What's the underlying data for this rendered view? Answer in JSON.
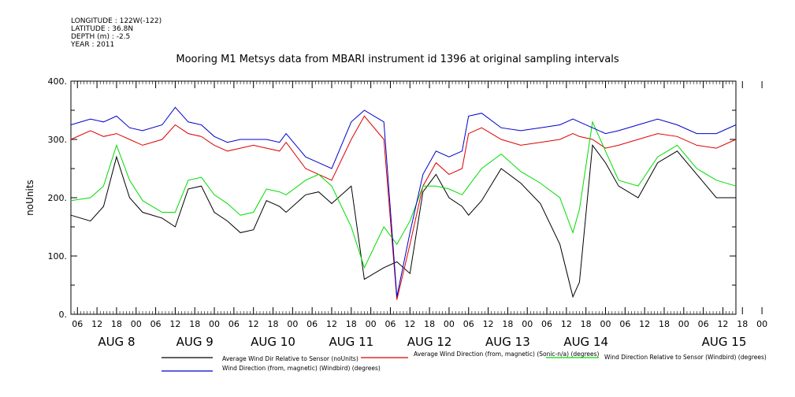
{
  "meta_lines": [
    "LONGITUDE : 122W(-122)",
    "LATITUDE : 36.8N",
    "DEPTH (m) : -2.5",
    "YEAR : 2011"
  ],
  "chart_data": {
    "type": "line",
    "title": "Mooring M1 Metsys data from MBARI instrument id 1396 at original sampling intervals",
    "ylabel": "noUnits",
    "xlabel": "",
    "ylim": [
      0,
      400
    ],
    "yticks": [
      0,
      100,
      200,
      300,
      400
    ],
    "yticklabels": [
      "0.",
      "100.",
      "200.",
      "300.",
      "400."
    ],
    "xlim_hours": [
      0,
      204
    ],
    "hour_ticks": [
      "06",
      "12",
      "18",
      "00",
      "06",
      "12",
      "18",
      "00",
      "06",
      "12",
      "18",
      "00",
      "06",
      "12",
      "18",
      "00",
      "06",
      "12",
      "18",
      "00",
      "06",
      "12",
      "18",
      "00",
      "06",
      "12",
      "18",
      "00",
      "06",
      "12",
      "18",
      "00",
      "06",
      "12",
      "18",
      "00"
    ],
    "day_labels": [
      "AUG  8",
      "AUG  9",
      "AUG 10",
      "AUG 11",
      "AUG 12",
      "AUG 13",
      "AUG 14",
      "AUG 15"
    ],
    "grid": false,
    "legend_position": "bottom",
    "series": [
      {
        "name": "Average Wind Dir Relative to Sensor (noUnits)",
        "color": "#000000",
        "x": [
          0,
          6,
          10,
          14,
          18,
          22,
          28,
          32,
          36,
          40,
          44,
          48,
          52,
          56,
          60,
          64,
          66,
          72,
          76,
          80,
          86,
          90,
          96,
          100,
          104,
          108,
          112,
          116,
          120,
          122,
          126,
          132,
          138,
          144,
          150,
          154,
          156,
          160,
          164,
          168,
          174,
          180,
          186,
          192,
          198,
          204
        ],
        "y": [
          170,
          160,
          185,
          270,
          200,
          175,
          165,
          150,
          215,
          220,
          175,
          160,
          140,
          145,
          195,
          185,
          175,
          205,
          210,
          190,
          220,
          60,
          80,
          90,
          70,
          210,
          240,
          200,
          185,
          170,
          195,
          250,
          225,
          190,
          120,
          30,
          55,
          290,
          260,
          220,
          200,
          260,
          280,
          240,
          200,
          200
        ]
      },
      {
        "name": "Average Wind Direction (from, magnetic) (Sonic-n/a) (degrees)",
        "color": "#dd0000",
        "x": [
          0,
          6,
          10,
          14,
          18,
          22,
          28,
          32,
          36,
          40,
          44,
          48,
          52,
          56,
          60,
          64,
          66,
          72,
          76,
          80,
          86,
          90,
          96,
          100,
          104,
          108,
          112,
          116,
          120,
          122,
          126,
          132,
          138,
          144,
          150,
          154,
          156,
          160,
          164,
          168,
          174,
          180,
          186,
          192,
          198,
          204
        ],
        "y": [
          300,
          315,
          305,
          310,
          300,
          290,
          300,
          325,
          310,
          305,
          290,
          280,
          285,
          290,
          285,
          280,
          295,
          250,
          240,
          230,
          300,
          340,
          300,
          25,
          120,
          220,
          260,
          240,
          250,
          310,
          320,
          300,
          290,
          295,
          300,
          310,
          305,
          300,
          285,
          290,
          300,
          310,
          305,
          290,
          285,
          300
        ]
      },
      {
        "name": "Wind Direction Relative to Sensor (Windbird) (degrees)",
        "color": "#00dd00",
        "x": [
          0,
          6,
          10,
          14,
          18,
          22,
          28,
          32,
          36,
          40,
          44,
          48,
          52,
          56,
          60,
          64,
          66,
          72,
          76,
          80,
          86,
          90,
          96,
          100,
          104,
          108,
          112,
          116,
          120,
          122,
          126,
          132,
          138,
          144,
          150,
          154,
          156,
          160,
          164,
          168,
          174,
          180,
          186,
          192,
          198,
          204
        ],
        "y": [
          195,
          200,
          220,
          290,
          230,
          195,
          175,
          175,
          230,
          235,
          205,
          190,
          170,
          175,
          215,
          210,
          205,
          230,
          240,
          220,
          150,
          80,
          150,
          120,
          160,
          220,
          220,
          215,
          205,
          220,
          250,
          275,
          245,
          225,
          200,
          140,
          180,
          330,
          280,
          230,
          220,
          270,
          290,
          250,
          230,
          220
        ]
      },
      {
        "name": "Wind Direction (from, magnetic) (Windbird) (degrees)",
        "color": "#0000cc",
        "x": [
          0,
          6,
          10,
          14,
          18,
          22,
          28,
          32,
          36,
          40,
          44,
          48,
          52,
          56,
          60,
          64,
          66,
          72,
          76,
          80,
          86,
          90,
          96,
          100,
          104,
          108,
          112,
          116,
          120,
          122,
          126,
          132,
          138,
          144,
          150,
          154,
          156,
          160,
          164,
          168,
          174,
          180,
          186,
          192,
          198,
          204
        ],
        "y": [
          325,
          335,
          330,
          340,
          320,
          315,
          325,
          355,
          330,
          325,
          305,
          295,
          300,
          300,
          300,
          295,
          310,
          270,
          260,
          250,
          330,
          350,
          330,
          30,
          140,
          240,
          280,
          270,
          280,
          340,
          345,
          320,
          315,
          320,
          325,
          335,
          330,
          320,
          310,
          315,
          325,
          335,
          325,
          310,
          310,
          325
        ]
      }
    ]
  }
}
